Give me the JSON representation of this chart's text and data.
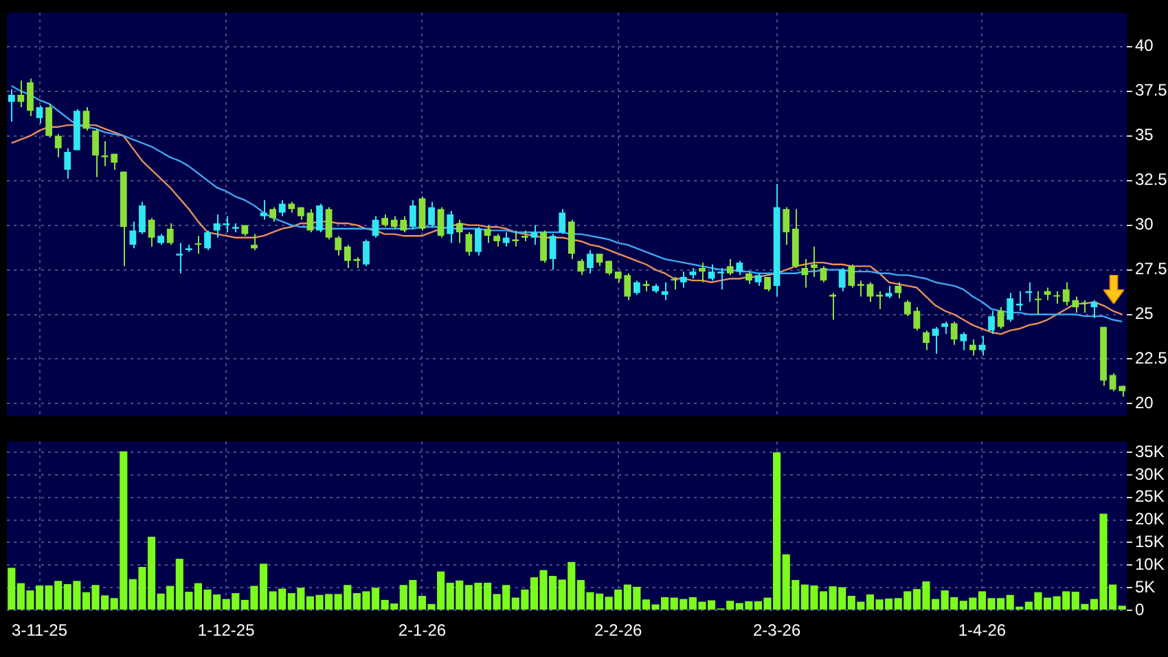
{
  "chart_data": [
    {
      "type": "candlestick",
      "categories": [
        null,
        null,
        null,
        null,
        null,
        null,
        null,
        null,
        null,
        null,
        null,
        null,
        null,
        null,
        null,
        null,
        null,
        null,
        null,
        null,
        null,
        null,
        null,
        null,
        null,
        null,
        null,
        null,
        null,
        null,
        null,
        null,
        null,
        null,
        null,
        null,
        null,
        null,
        null,
        null,
        null,
        null,
        null,
        null,
        null,
        null,
        null,
        null,
        null,
        null,
        null,
        null,
        null,
        null,
        null,
        null,
        null,
        null,
        null,
        null,
        null,
        null,
        null,
        null,
        null,
        null,
        null,
        null,
        null,
        null,
        null,
        null,
        null,
        null,
        null,
        null,
        null,
        null,
        null,
        null,
        null,
        null,
        null,
        null,
        null,
        null,
        null,
        null,
        null,
        null,
        null,
        null,
        null,
        null,
        null,
        null,
        null,
        null,
        null,
        null,
        null,
        null,
        null,
        null,
        null,
        null,
        null,
        null,
        null,
        null,
        null,
        null,
        null,
        null,
        null,
        null,
        null,
        null,
        null,
        null
      ],
      "ohlc": [
        [
          36.9,
          37.6,
          35.8,
          37.3
        ],
        [
          37.3,
          38.1,
          36.6,
          36.9
        ],
        [
          38.0,
          38.2,
          36.1,
          36.4
        ],
        [
          36.0,
          36.7,
          35.7,
          36.6
        ],
        [
          36.6,
          36.8,
          34.9,
          35.0
        ],
        [
          35.0,
          35.1,
          33.8,
          34.3
        ],
        [
          33.1,
          34.3,
          32.6,
          34.1
        ],
        [
          34.2,
          36.5,
          34.2,
          36.4
        ],
        [
          36.4,
          36.6,
          35.3,
          35.4
        ],
        [
          35.3,
          35.4,
          32.7,
          33.9
        ],
        [
          33.9,
          34.7,
          33.3,
          33.8
        ],
        [
          34.0,
          34.0,
          33.1,
          33.5
        ],
        [
          33.0,
          33.0,
          27.7,
          29.9
        ],
        [
          28.9,
          30.2,
          28.7,
          29.7
        ],
        [
          29.6,
          31.3,
          29.5,
          31.1
        ],
        [
          30.3,
          30.4,
          28.8,
          29.3
        ],
        [
          29.0,
          29.5,
          28.9,
          29.4
        ],
        [
          29.8,
          30.1,
          28.9,
          29.0
        ],
        [
          28.3,
          29.0,
          27.3,
          28.4
        ],
        [
          28.6,
          28.9,
          28.5,
          28.7
        ],
        [
          28.9,
          29.4,
          28.4,
          28.9
        ],
        [
          28.7,
          29.7,
          28.6,
          29.6
        ],
        [
          29.7,
          30.6,
          29.3,
          30.1
        ],
        [
          30.0,
          30.5,
          29.6,
          30.1
        ],
        [
          29.8,
          30.1,
          29.6,
          29.9
        ],
        [
          30.0,
          30.0,
          29.4,
          29.5
        ],
        [
          28.9,
          29.5,
          28.6,
          28.7
        ],
        [
          30.5,
          31.4,
          30.3,
          30.7
        ],
        [
          30.9,
          31.0,
          30.2,
          30.4
        ],
        [
          30.7,
          31.4,
          30.5,
          31.2
        ],
        [
          31.2,
          31.3,
          30.7,
          30.9
        ],
        [
          31.0,
          31.0,
          30.3,
          30.5
        ],
        [
          30.7,
          30.9,
          29.6,
          29.7
        ],
        [
          29.7,
          31.2,
          29.6,
          31.1
        ],
        [
          30.9,
          31.0,
          29.2,
          29.3
        ],
        [
          29.3,
          29.4,
          28.3,
          28.6
        ],
        [
          28.8,
          28.9,
          27.6,
          28.0
        ],
        [
          28.1,
          28.2,
          27.6,
          28.0
        ],
        [
          27.8,
          29.2,
          27.7,
          29.1
        ],
        [
          29.4,
          30.5,
          29.3,
          30.3
        ],
        [
          30.4,
          30.6,
          29.9,
          30.0
        ],
        [
          30.3,
          30.5,
          29.8,
          29.9
        ],
        [
          30.3,
          30.5,
          29.6,
          29.7
        ],
        [
          29.9,
          31.4,
          29.8,
          31.1
        ],
        [
          31.5,
          31.6,
          29.7,
          29.8
        ],
        [
          30.0,
          31.3,
          29.9,
          31.0
        ],
        [
          30.9,
          31.0,
          29.3,
          29.4
        ],
        [
          29.5,
          30.8,
          29.0,
          30.6
        ],
        [
          30.1,
          30.3,
          29.0,
          29.6
        ],
        [
          29.5,
          29.6,
          28.3,
          28.5
        ],
        [
          28.5,
          29.9,
          28.3,
          29.8
        ],
        [
          29.8,
          30.0,
          29.0,
          29.4
        ],
        [
          29.4,
          29.5,
          28.8,
          29.1
        ],
        [
          29.0,
          29.6,
          28.8,
          29.3
        ],
        [
          29.2,
          29.7,
          28.8,
          29.1
        ],
        [
          29.4,
          29.7,
          29.1,
          29.3
        ],
        [
          29.3,
          30.0,
          28.9,
          29.6
        ],
        [
          29.6,
          29.7,
          27.9,
          28.0
        ],
        [
          28.1,
          29.5,
          27.5,
          29.4
        ],
        [
          29.6,
          30.9,
          29.5,
          30.7
        ],
        [
          30.2,
          30.3,
          28.1,
          28.4
        ],
        [
          28.0,
          28.1,
          27.2,
          27.4
        ],
        [
          27.6,
          28.6,
          27.3,
          28.4
        ],
        [
          28.4,
          28.4,
          27.7,
          27.9
        ],
        [
          28.0,
          28.0,
          27.2,
          27.3
        ],
        [
          27.4,
          27.4,
          26.8,
          27.0
        ],
        [
          27.2,
          27.3,
          25.8,
          26.0
        ],
        [
          26.2,
          26.9,
          26.1,
          26.8
        ],
        [
          26.7,
          26.9,
          26.3,
          26.6
        ],
        [
          26.3,
          26.7,
          26.2,
          26.6
        ],
        [
          26.1,
          26.8,
          25.8,
          26.3
        ],
        [
          26.9,
          27.1,
          26.4,
          26.9
        ],
        [
          26.8,
          27.4,
          26.5,
          27.1
        ],
        [
          27.2,
          27.6,
          27.0,
          27.4
        ],
        [
          27.6,
          27.9,
          26.8,
          27.4
        ],
        [
          27.0,
          27.8,
          26.9,
          27.4
        ],
        [
          27.3,
          27.6,
          26.4,
          27.4
        ],
        [
          27.7,
          28.1,
          27.2,
          27.3
        ],
        [
          27.4,
          28.0,
          27.2,
          27.9
        ],
        [
          27.3,
          27.4,
          26.7,
          26.9
        ],
        [
          26.8,
          27.3,
          26.6,
          27.2
        ],
        [
          27.1,
          27.1,
          26.3,
          26.4
        ],
        [
          26.6,
          32.3,
          26.0,
          31.0
        ],
        [
          30.9,
          31.0,
          28.9,
          29.6
        ],
        [
          29.8,
          30.9,
          27.6,
          27.7
        ],
        [
          27.6,
          28.1,
          26.5,
          27.2
        ],
        [
          27.8,
          28.8,
          27.1,
          27.6
        ],
        [
          27.6,
          27.7,
          26.8,
          26.9
        ],
        [
          26.1,
          26.2,
          24.7,
          26.0
        ],
        [
          26.5,
          27.6,
          26.3,
          27.5
        ],
        [
          27.7,
          27.8,
          26.5,
          26.6
        ],
        [
          26.7,
          26.9,
          26.0,
          26.6
        ],
        [
          26.7,
          26.8,
          25.7,
          26.0
        ],
        [
          26.1,
          26.3,
          25.3,
          26.0
        ],
        [
          26.0,
          26.6,
          25.9,
          26.2
        ],
        [
          26.6,
          26.8,
          25.9,
          26.2
        ],
        [
          25.7,
          25.8,
          24.9,
          25.0
        ],
        [
          25.2,
          25.4,
          24.1,
          24.2
        ],
        [
          24.0,
          24.1,
          23.0,
          23.4
        ],
        [
          23.8,
          24.3,
          22.8,
          24.2
        ],
        [
          24.3,
          24.6,
          23.9,
          24.5
        ],
        [
          24.5,
          24.6,
          23.3,
          23.6
        ],
        [
          23.5,
          24.0,
          23.0,
          23.9
        ],
        [
          23.3,
          23.6,
          22.7,
          23.0
        ],
        [
          23.0,
          23.8,
          22.7,
          23.3
        ],
        [
          24.1,
          25.2,
          23.9,
          24.9
        ],
        [
          25.2,
          25.4,
          24.2,
          24.3
        ],
        [
          24.7,
          26.2,
          24.6,
          25.9
        ],
        [
          25.5,
          26.3,
          25.2,
          25.6
        ],
        [
          26.2,
          26.8,
          25.7,
          26.3
        ],
        [
          25.8,
          26.3,
          25.0,
          25.8
        ],
        [
          26.3,
          26.5,
          25.8,
          26.1
        ],
        [
          26.0,
          26.3,
          25.6,
          26.0
        ],
        [
          26.4,
          26.8,
          25.5,
          25.7
        ],
        [
          25.8,
          26.0,
          25.1,
          25.4
        ],
        [
          25.6,
          25.8,
          25.1,
          25.6
        ],
        [
          25.4,
          25.8,
          24.8,
          25.7
        ],
        [
          24.3,
          24.3,
          21.0,
          21.3
        ],
        [
          21.6,
          21.7,
          20.7,
          20.8
        ],
        [
          21.0,
          21.0,
          20.4,
          20.7
        ]
      ],
      "colors": [
        "#33e6f2",
        "#8ae03a",
        "#8ae03a",
        "#33e6f2",
        "#8ae03a",
        "#8ae03a",
        "#33e6f2",
        "#33e6f2",
        "#8ae03a",
        "#8ae03a",
        "#8ae03a",
        "#8ae03a",
        "#8ae03a",
        "#33e6f2",
        "#33e6f2",
        "#8ae03a",
        "#33e6f2",
        "#8ae03a",
        "#33e6f2",
        "#33e6f2",
        "#8ae03a",
        "#33e6f2",
        "#33e6f2",
        "#33e6f2",
        "#33e6f2",
        "#8ae03a",
        "#8ae03a",
        "#33e6f2",
        "#8ae03a",
        "#33e6f2",
        "#8ae03a",
        "#8ae03a",
        "#8ae03a",
        "#33e6f2",
        "#8ae03a",
        "#8ae03a",
        "#8ae03a",
        "#8ae03a",
        "#33e6f2",
        "#33e6f2",
        "#8ae03a",
        "#8ae03a",
        "#8ae03a",
        "#33e6f2",
        "#8ae03a",
        "#33e6f2",
        "#8ae03a",
        "#33e6f2",
        "#8ae03a",
        "#8ae03a",
        "#33e6f2",
        "#8ae03a",
        "#8ae03a",
        "#33e6f2",
        "#8ae03a",
        "#8ae03a",
        "#33e6f2",
        "#8ae03a",
        "#33e6f2",
        "#33e6f2",
        "#8ae03a",
        "#8ae03a",
        "#33e6f2",
        "#8ae03a",
        "#8ae03a",
        "#8ae03a",
        "#8ae03a",
        "#33e6f2",
        "#8ae03a",
        "#33e6f2",
        "#33e6f2",
        "#8ae03a",
        "#33e6f2",
        "#33e6f2",
        "#8ae03a",
        "#33e6f2",
        "#33e6f2",
        "#8ae03a",
        "#33e6f2",
        "#8ae03a",
        "#33e6f2",
        "#8ae03a",
        "#33e6f2",
        "#8ae03a",
        "#8ae03a",
        "#8ae03a",
        "#8ae03a",
        "#8ae03a",
        "#8ae03a",
        "#33e6f2",
        "#8ae03a",
        "#8ae03a",
        "#8ae03a",
        "#8ae03a",
        "#33e6f2",
        "#8ae03a",
        "#8ae03a",
        "#8ae03a",
        "#8ae03a",
        "#33e6f2",
        "#33e6f2",
        "#8ae03a",
        "#33e6f2",
        "#8ae03a",
        "#33e6f2",
        "#33e6f2",
        "#8ae03a",
        "#33e6f2",
        "#33e6f2",
        "#33e6f2",
        "#8ae03a",
        "#8ae03a",
        "#8ae03a",
        "#8ae03a",
        "#8ae03a",
        "#8ae03a",
        "#33e6f2",
        "#8ae03a",
        "#8ae03a",
        "#8ae03a"
      ],
      "series": [
        {
          "type": "line",
          "color": "#3fa6f0",
          "values": [
            37.8,
            37.5,
            37.3,
            37.0,
            36.8,
            36.4,
            36.0,
            35.6,
            35.5,
            35.4,
            35.2,
            35.1,
            35.0,
            34.8,
            34.6,
            34.4,
            34.1,
            33.8,
            33.6,
            33.3,
            32.9,
            32.5,
            32.1,
            31.9,
            31.6,
            31.4,
            31.1,
            30.7,
            30.4,
            30.2,
            30.0,
            29.9,
            29.9,
            29.8,
            29.8,
            29.8,
            29.8,
            29.8,
            29.8,
            29.8,
            29.8,
            29.8,
            29.8,
            29.8,
            29.9,
            29.9,
            29.9,
            29.8,
            29.8,
            29.8,
            29.8,
            29.7,
            29.7,
            29.7,
            29.6,
            29.6,
            29.6,
            29.6,
            29.6,
            29.6,
            29.5,
            29.5,
            29.4,
            29.3,
            29.2,
            29.0,
            28.9,
            28.7,
            28.5,
            28.3,
            28.1,
            28.0,
            27.9,
            27.8,
            27.7,
            27.6,
            27.5,
            27.5,
            27.4,
            27.4,
            27.3,
            27.3,
            27.3,
            27.3,
            27.3,
            27.4,
            27.4,
            27.5,
            27.5,
            27.5,
            27.4,
            27.4,
            27.4,
            27.3,
            27.3,
            27.2,
            27.2,
            27.1,
            27.0,
            26.8,
            26.7,
            26.6,
            26.4,
            26.0,
            25.7,
            25.3,
            25.2,
            25.1,
            25.1,
            25.0,
            25.0,
            25.0,
            25.0,
            25.0,
            25.0,
            24.9,
            24.9,
            24.9,
            24.7,
            24.6
          ]
        },
        {
          "type": "line",
          "color": "#e8905a",
          "values": [
            34.6,
            34.8,
            35.0,
            35.3,
            35.5,
            35.5,
            35.6,
            35.6,
            35.6,
            35.6,
            35.4,
            35.2,
            35.0,
            34.3,
            33.6,
            33.1,
            32.6,
            32.1,
            31.5,
            30.9,
            30.2,
            29.6,
            29.5,
            29.4,
            29.3,
            29.3,
            29.3,
            29.4,
            29.6,
            29.8,
            29.9,
            30.1,
            30.1,
            30.2,
            30.2,
            30.1,
            30.1,
            30.0,
            29.8,
            29.7,
            29.5,
            29.5,
            29.4,
            29.4,
            29.4,
            29.6,
            29.8,
            29.9,
            30.1,
            30.0,
            30.0,
            29.9,
            29.9,
            29.8,
            29.6,
            29.5,
            29.4,
            29.3,
            29.3,
            29.3,
            29.2,
            29.1,
            28.9,
            28.8,
            28.6,
            28.4,
            28.2,
            28.0,
            27.8,
            27.5,
            27.3,
            27.0,
            27.0,
            26.9,
            26.9,
            26.8,
            26.9,
            27.0,
            27.0,
            27.1,
            27.1,
            27.2,
            27.3,
            27.5,
            27.7,
            27.8,
            27.9,
            27.9,
            27.8,
            27.8,
            27.7,
            27.7,
            27.7,
            27.3,
            26.8,
            26.7,
            26.6,
            26.5,
            26.0,
            25.5,
            25.2,
            25.0,
            24.7,
            24.4,
            24.2,
            24.0,
            23.9,
            24.1,
            24.2,
            24.4,
            24.5,
            24.7,
            25.0,
            25.3,
            25.6,
            25.6,
            25.7,
            25.5,
            25.2,
            25.0
          ]
        }
      ],
      "ylim": [
        19.3,
        41.9
      ],
      "yticks": [
        20,
        22.5,
        25,
        27.5,
        30,
        32.5,
        35,
        37.5,
        40
      ],
      "grid": true,
      "tick_labels": "y",
      "marker": "none"
    },
    {
      "type": "bar",
      "categories": [
        null,
        null,
        null,
        "3-11-25",
        null,
        null,
        null,
        null,
        null,
        null,
        null,
        null,
        null,
        null,
        null,
        null,
        null,
        null,
        null,
        null,
        null,
        null,
        null,
        "1-12-25",
        null,
        null,
        null,
        null,
        null,
        null,
        null,
        null,
        null,
        null,
        null,
        null,
        null,
        null,
        null,
        null,
        null,
        null,
        null,
        null,
        "2-1-26",
        null,
        null,
        null,
        null,
        null,
        null,
        null,
        null,
        null,
        null,
        null,
        null,
        null,
        null,
        null,
        null,
        null,
        null,
        null,
        null,
        "2-2-26",
        null,
        null,
        null,
        null,
        null,
        null,
        null,
        null,
        null,
        null,
        null,
        null,
        null,
        null,
        null,
        null,
        "2-3-26",
        null,
        null,
        null,
        null,
        null,
        null,
        null,
        null,
        null,
        null,
        null,
        null,
        null,
        null,
        null,
        null,
        null,
        null,
        null,
        null,
        null,
        "1-4-26",
        null,
        null,
        null,
        null,
        null,
        null,
        null,
        null,
        null,
        null,
        null,
        null,
        null,
        null,
        null
      ],
      "values": [
        9400,
        6000,
        4400,
        5500,
        5500,
        6500,
        5800,
        6500,
        4000,
        5600,
        3300,
        2700,
        35200,
        6900,
        9600,
        16300,
        3700,
        5400,
        11400,
        4100,
        6000,
        4600,
        3500,
        2500,
        3800,
        2300,
        5400,
        10300,
        4200,
        4800,
        3800,
        5000,
        3100,
        3400,
        3600,
        3600,
        5600,
        3800,
        4200,
        5000,
        2300,
        1500,
        5600,
        6700,
        3200,
        1400,
        8600,
        6100,
        6600,
        5600,
        6100,
        6100,
        3600,
        5600,
        2800,
        4600,
        7300,
        8900,
        7600,
        6800,
        10700,
        6700,
        4000,
        3700,
        3000,
        4600,
        5700,
        5200,
        2400,
        1300,
        2900,
        2800,
        2500,
        2900,
        1900,
        2200,
        400,
        2100,
        1600,
        2000,
        2000,
        2800,
        35000,
        12400,
        6700,
        5700,
        5500,
        4200,
        5300,
        5100,
        3200,
        1900,
        3500,
        2400,
        2600,
        2700,
        4200,
        4700,
        6400,
        2500,
        4400,
        2900,
        2100,
        2800,
        4200,
        2700,
        2700,
        3400,
        800,
        1900,
        4000,
        2800,
        3100,
        4200,
        4100,
        1400,
        2500,
        21400,
        5700,
        1000
      ],
      "color": "#7cfc1c",
      "ylim": [
        0,
        37400
      ],
      "yticks": [
        0,
        {
          "value": 5000,
          "label": "5K"
        },
        {
          "value": 10000,
          "label": "10K"
        },
        {
          "value": 15000,
          "label": "15K"
        },
        {
          "value": 20000,
          "label": "20K"
        },
        {
          "value": 25000,
          "label": "25K"
        },
        {
          "value": 30000,
          "label": "30K"
        },
        {
          "value": 35000,
          "label": "35K"
        }
      ],
      "grid": true
    }
  ]
}
